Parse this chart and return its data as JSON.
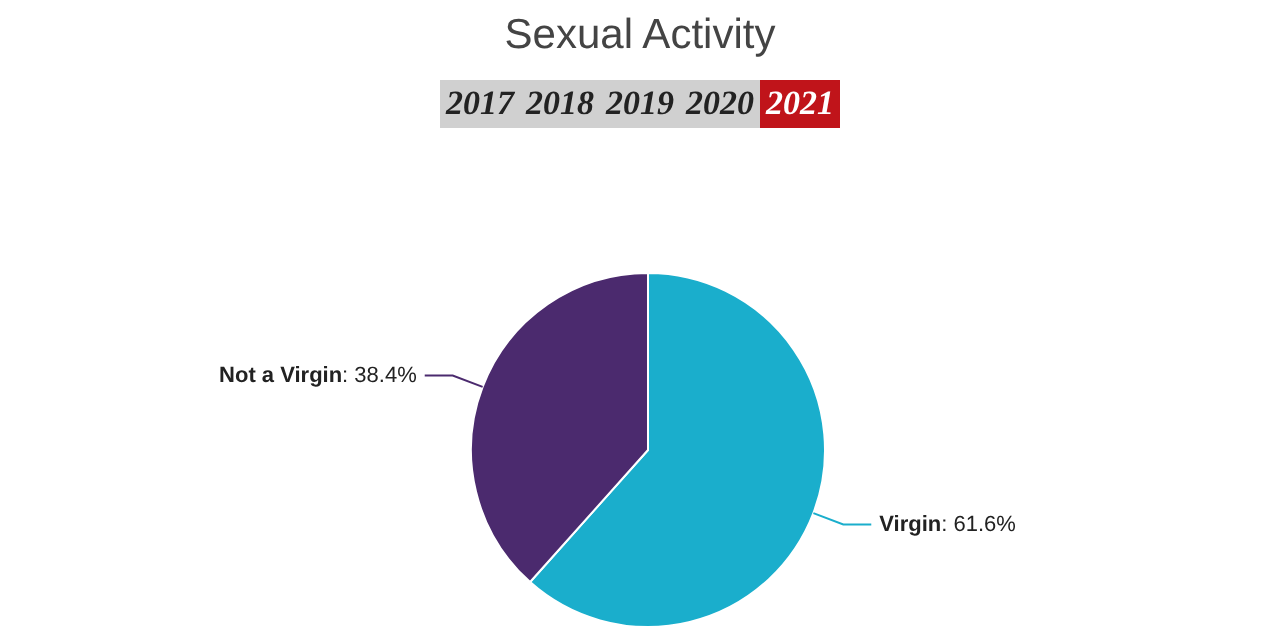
{
  "chart_data": {
    "type": "pie",
    "title": "Sexual Activity",
    "annotations": [
      "2017",
      "2018",
      "2019",
      "2020",
      "2021"
    ],
    "categories": [
      "Virgin",
      "Not a Virgin"
    ],
    "values": [
      61.6,
      38.4
    ],
    "colors": [
      "#1aaecc",
      "#4b2a6e"
    ],
    "value_labels": [
      ": 61.6%",
      ": 38.4%"
    ],
    "legend": false
  }
}
